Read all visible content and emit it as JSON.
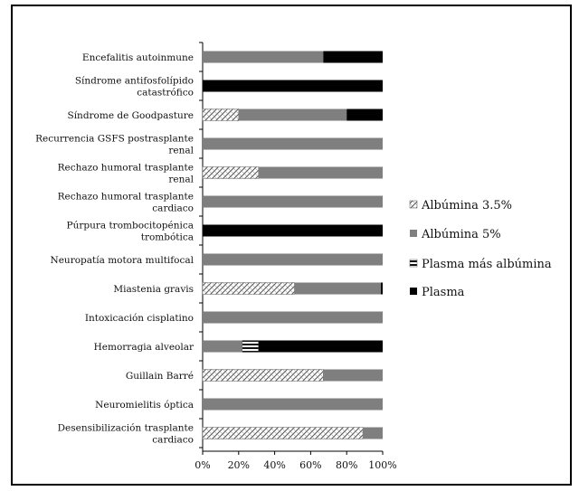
{
  "chart_data": {
    "type": "bar",
    "orientation": "horizontal",
    "stacked": "percent",
    "categories": [
      "Encefalitis autoinmune",
      "Síndrome antifosfolípido catastrófico",
      "Síndrome de Goodpasture",
      "Recurrencia GSFS postrasplante renal",
      "Rechazo humoral trasplante renal",
      "Rechazo humoral trasplante cardiaco",
      "Púrpura trombocitopénica trombótica",
      "Neuropatía motora multifocal",
      "Miastenia gravis",
      "Intoxicación cisplatino",
      "Hemorragia alveolar",
      "Guillain Barré",
      "Neuromielitis óptica",
      "Desensibilización trasplante cardiaco"
    ],
    "series": [
      {
        "name": "Albúmina 3.5%",
        "pattern": "checker",
        "color": "#ffffff",
        "values": [
          0,
          0,
          20,
          0,
          31,
          0,
          0,
          0,
          51,
          0,
          0,
          67,
          0,
          89
        ]
      },
      {
        "name": "Albúmina 5%",
        "pattern": "solid",
        "color": "#7f7f7f",
        "values": [
          67,
          0,
          60,
          100,
          69,
          100,
          0,
          100,
          48,
          100,
          22,
          33,
          100,
          11
        ]
      },
      {
        "name": "Plasma más albúmina",
        "pattern": "stripes",
        "color": "#ffffff",
        "values": [
          0,
          0,
          0,
          0,
          0,
          0,
          0,
          0,
          0,
          0,
          9,
          0,
          0,
          0
        ]
      },
      {
        "name": "Plasma",
        "pattern": "solid",
        "color": "#000000",
        "values": [
          33,
          100,
          20,
          0,
          0,
          0,
          100,
          0,
          1,
          0,
          69,
          0,
          0,
          0
        ]
      }
    ],
    "x_ticks": [
      "0%",
      "20%",
      "40%",
      "60%",
      "80%",
      "100%"
    ],
    "xlim": [
      0,
      100
    ],
    "grid": false,
    "legend_position": "right"
  }
}
